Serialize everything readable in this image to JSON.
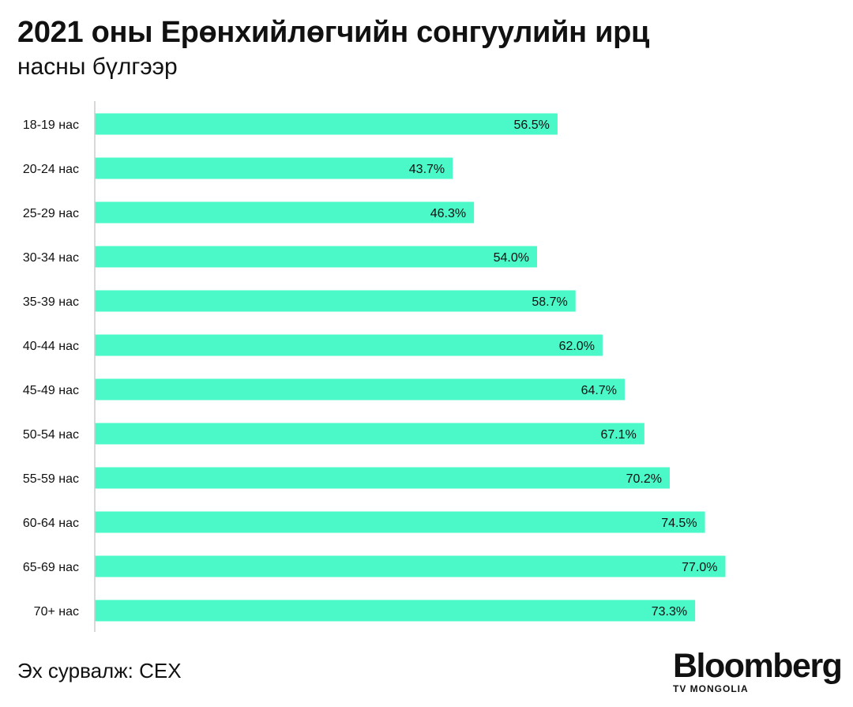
{
  "title": "2021 оны Ерөнхийлөгчийн сонгуулийн ирц",
  "subtitle": "насны бүлгээр",
  "source": "Эх сурвалж: СЕХ",
  "logo": {
    "main": "Bloomberg",
    "sub": "TV MONGOLIA"
  },
  "colors": {
    "bar": "#4af8c8",
    "axis": "#cccccc",
    "text": "#111111"
  },
  "chart_data": {
    "type": "bar",
    "orientation": "horizontal",
    "categories": [
      "18-19 нас",
      "20-24 нас",
      "25-29 нас",
      "30-34 нас",
      "35-39 нас",
      "40-44 нас",
      "45-49 нас",
      "50-54 нас",
      "55-59 нас",
      "60-64 нас",
      "65-69 нас",
      "70+ нас"
    ],
    "values": [
      56.5,
      43.7,
      46.3,
      54.0,
      58.7,
      62.0,
      64.7,
      67.1,
      70.2,
      74.5,
      77.0,
      73.3
    ],
    "labels": [
      "56.5%",
      "43.7%",
      "46.3%",
      "54.0%",
      "58.7%",
      "62.0%",
      "64.7%",
      "67.1%",
      "70.2%",
      "74.5%",
      "77.0%",
      "73.3%"
    ],
    "xlim": [
      0,
      100
    ],
    "grid": false
  }
}
